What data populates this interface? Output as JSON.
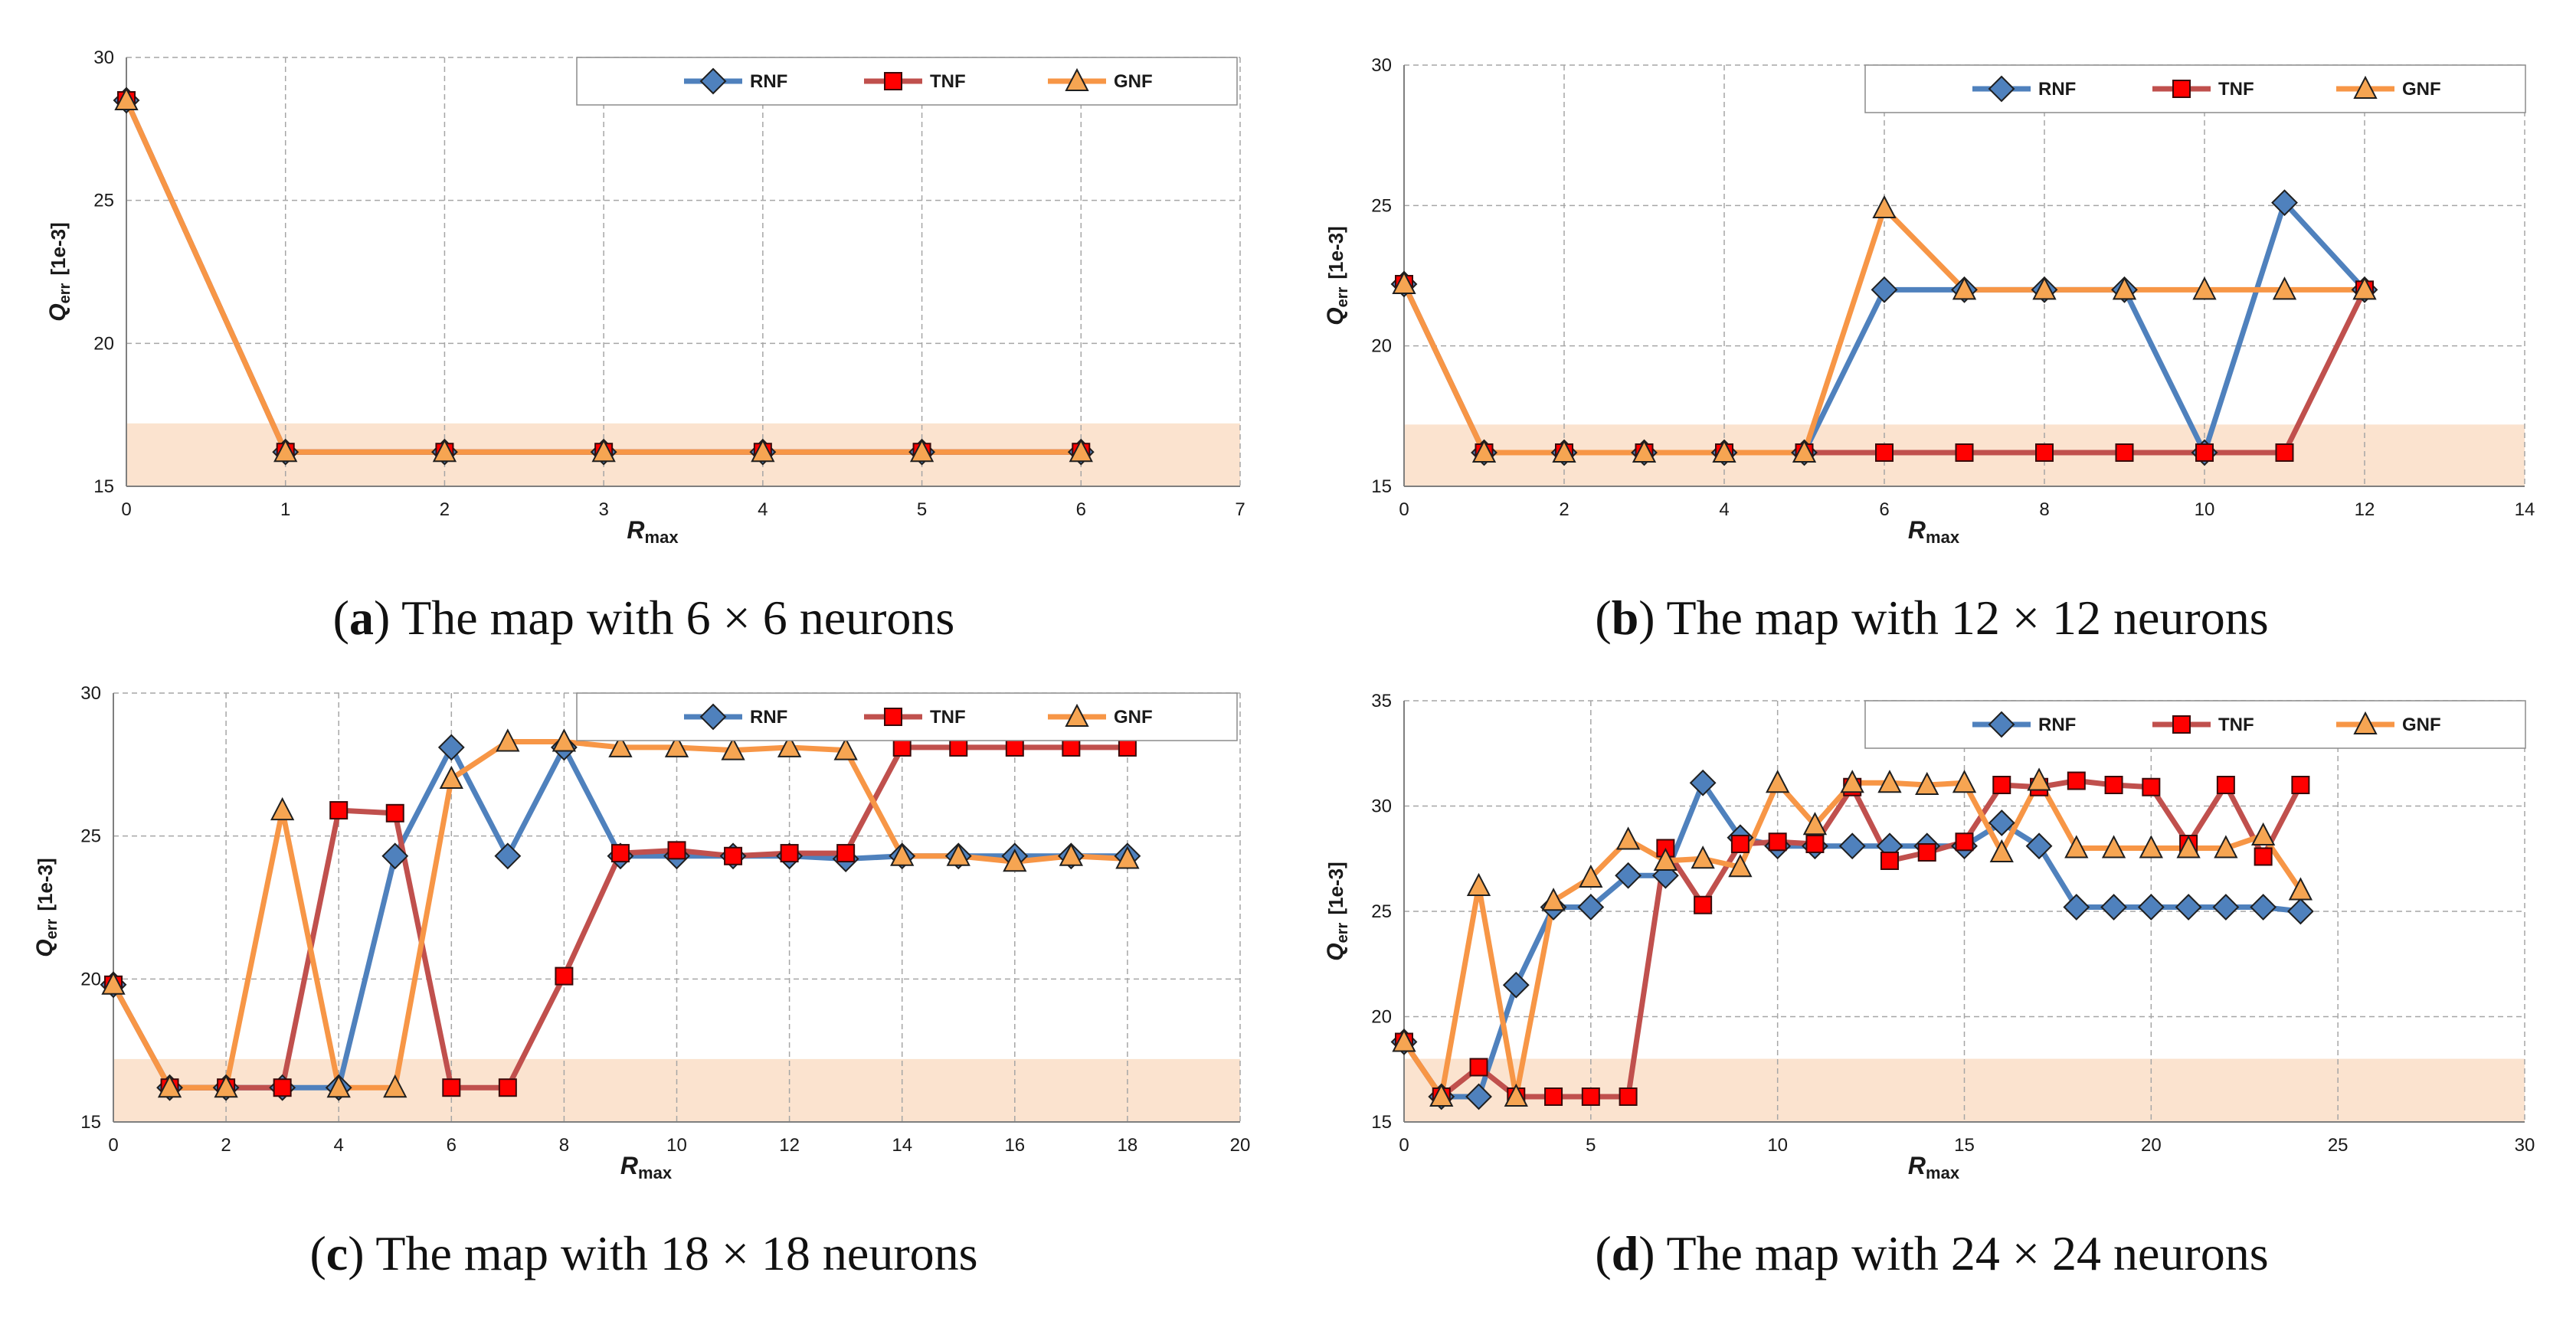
{
  "colors": {
    "RNF": "#4f81bd",
    "TNF": "#c0504d",
    "GNF": "#f79646",
    "RNF_marker": "#4f81bd",
    "TNF_marker": "#ff0000",
    "GNF_marker": "#f6a552",
    "band": "#fbe3cf",
    "grid": "#a6a6a6"
  },
  "chart_data": [
    {
      "type": "line",
      "panel": "a",
      "caption_label": "a",
      "caption_text": "The map with 6 × 6 neurons",
      "xlabel_main": "R",
      "xlabel_sub": "max",
      "ylabel_main": "Q",
      "ylabel_sub": "err",
      "ylabel_unit": "[1e-3]",
      "xlim": [
        0,
        7
      ],
      "ylim": [
        15,
        30
      ],
      "xticks": [
        0,
        1,
        2,
        3,
        4,
        5,
        6,
        7
      ],
      "yticks": [
        15,
        20,
        25,
        30
      ],
      "band": [
        15,
        17.2
      ],
      "legend": [
        "RNF",
        "TNF",
        "GNF"
      ],
      "series": [
        {
          "name": "RNF",
          "x": [
            0,
            1,
            2,
            3,
            4,
            5,
            6
          ],
          "values": [
            28.5,
            16.2,
            16.2,
            16.2,
            16.2,
            16.2,
            16.2
          ]
        },
        {
          "name": "TNF",
          "x": [
            0,
            1,
            2,
            3,
            4,
            5,
            6
          ],
          "values": [
            28.5,
            16.2,
            16.2,
            16.2,
            16.2,
            16.2,
            16.2
          ]
        },
        {
          "name": "GNF",
          "x": [
            0,
            1,
            2,
            3,
            4,
            5,
            6
          ],
          "values": [
            28.5,
            16.2,
            16.2,
            16.2,
            16.2,
            16.2,
            16.2
          ]
        }
      ]
    },
    {
      "type": "line",
      "panel": "b",
      "caption_label": "b",
      "caption_text": "The map with 12 × 12 neurons",
      "xlabel_main": "R",
      "xlabel_sub": "max",
      "ylabel_main": "Q",
      "ylabel_sub": "err",
      "ylabel_unit": "[1e-3]",
      "xlim": [
        0,
        14
      ],
      "ylim": [
        15,
        30
      ],
      "xticks": [
        0,
        2,
        4,
        6,
        8,
        10,
        12,
        14
      ],
      "yticks": [
        15,
        20,
        25,
        30
      ],
      "band": [
        15,
        17.2
      ],
      "legend": [
        "RNF",
        "TNF",
        "GNF"
      ],
      "series": [
        {
          "name": "RNF",
          "x": [
            0,
            1,
            2,
            3,
            4,
            5,
            6,
            7,
            8,
            9,
            10,
            11,
            12
          ],
          "values": [
            22.2,
            16.2,
            16.2,
            16.2,
            16.2,
            16.2,
            22.0,
            22.0,
            22.0,
            22.0,
            16.2,
            25.1,
            22.0
          ]
        },
        {
          "name": "TNF",
          "x": [
            0,
            1,
            2,
            3,
            4,
            5,
            6,
            7,
            8,
            9,
            10,
            11,
            12
          ],
          "values": [
            22.2,
            16.2,
            16.2,
            16.2,
            16.2,
            16.2,
            16.2,
            16.2,
            16.2,
            16.2,
            16.2,
            16.2,
            22.0
          ]
        },
        {
          "name": "GNF",
          "x": [
            0,
            1,
            2,
            3,
            4,
            5,
            6,
            7,
            8,
            9,
            10,
            11,
            12
          ],
          "values": [
            22.2,
            16.2,
            16.2,
            16.2,
            16.2,
            16.2,
            24.9,
            22.0,
            22.0,
            22.0,
            22.0,
            22.0,
            22.0
          ]
        }
      ]
    },
    {
      "type": "line",
      "panel": "c",
      "caption_label": "c",
      "caption_text": "The map with 18 × 18 neurons",
      "xlabel_main": "R",
      "xlabel_sub": "max",
      "ylabel_main": "Q",
      "ylabel_sub": "err",
      "ylabel_unit": "[1e-3]",
      "xlim": [
        0,
        20
      ],
      "ylim": [
        15,
        30
      ],
      "xticks": [
        0,
        2,
        4,
        6,
        8,
        10,
        12,
        14,
        16,
        18,
        20
      ],
      "yticks": [
        15,
        20,
        25,
        30
      ],
      "band": [
        15,
        17.2
      ],
      "legend": [
        "RNF",
        "TNF",
        "GNF"
      ],
      "series": [
        {
          "name": "RNF",
          "x": [
            0,
            1,
            2,
            3,
            4,
            5,
            6,
            7,
            8,
            9,
            10,
            11,
            12,
            13,
            14,
            15,
            16,
            17,
            18
          ],
          "values": [
            19.8,
            16.2,
            16.2,
            16.2,
            16.2,
            24.3,
            28.1,
            24.3,
            28.1,
            24.3,
            24.3,
            24.3,
            24.3,
            24.2,
            24.3,
            24.3,
            24.3,
            24.3,
            24.3
          ]
        },
        {
          "name": "TNF",
          "x": [
            0,
            1,
            2,
            3,
            4,
            5,
            6,
            7,
            8,
            9,
            10,
            11,
            12,
            13,
            14,
            15,
            16,
            17,
            18
          ],
          "values": [
            19.8,
            16.2,
            16.2,
            16.2,
            25.9,
            25.8,
            16.2,
            16.2,
            20.1,
            24.4,
            24.5,
            24.3,
            24.4,
            24.4,
            28.1,
            28.1,
            28.1,
            28.1,
            28.1
          ]
        },
        {
          "name": "GNF",
          "x": [
            0,
            1,
            2,
            3,
            4,
            5,
            6,
            7,
            8,
            9,
            10,
            11,
            12,
            13,
            14,
            15,
            16,
            17,
            18
          ],
          "values": [
            19.8,
            16.2,
            16.2,
            25.9,
            16.2,
            16.2,
            27.0,
            28.3,
            28.3,
            28.1,
            28.1,
            28.0,
            28.1,
            28.0,
            24.3,
            24.3,
            24.1,
            24.3,
            24.2
          ]
        }
      ]
    },
    {
      "type": "line",
      "panel": "d",
      "caption_label": "d",
      "caption_text": "The map with 24 × 24 neurons",
      "xlabel_main": "R",
      "xlabel_sub": "max",
      "ylabel_main": "Q",
      "ylabel_sub": "err",
      "ylabel_unit": "[1e-3]",
      "xlim": [
        0,
        30
      ],
      "ylim": [
        15,
        35
      ],
      "xticks": [
        0,
        5,
        10,
        15,
        20,
        25,
        30
      ],
      "yticks": [
        15,
        20,
        25,
        30,
        35
      ],
      "band": [
        15,
        18
      ],
      "legend": [
        "RNF",
        "TNF",
        "GNF"
      ],
      "series": [
        {
          "name": "RNF",
          "x": [
            0,
            1,
            2,
            3,
            4,
            5,
            6,
            7,
            8,
            9,
            10,
            11,
            12,
            13,
            14,
            15,
            16,
            17,
            18,
            19,
            20,
            21,
            22,
            23,
            24
          ],
          "values": [
            18.8,
            16.2,
            16.2,
            21.5,
            25.2,
            25.2,
            26.7,
            26.7,
            31.1,
            28.5,
            28.1,
            28.1,
            28.1,
            28.1,
            28.1,
            28.1,
            29.2,
            28.1,
            25.2,
            25.2,
            25.2,
            25.2,
            25.2,
            25.2,
            25.0
          ]
        },
        {
          "name": "TNF",
          "x": [
            0,
            1,
            2,
            3,
            4,
            5,
            6,
            7,
            8,
            9,
            10,
            11,
            12,
            13,
            14,
            15,
            16,
            17,
            18,
            19,
            20,
            21,
            22,
            23,
            24
          ],
          "values": [
            18.8,
            16.2,
            17.6,
            16.2,
            16.2,
            16.2,
            16.2,
            28.0,
            25.3,
            28.2,
            28.3,
            28.2,
            30.9,
            27.4,
            27.8,
            28.3,
            31.0,
            30.9,
            31.2,
            31.0,
            30.9,
            28.2,
            31.0,
            27.6,
            31.0
          ]
        },
        {
          "name": "GNF",
          "x": [
            0,
            1,
            2,
            3,
            4,
            5,
            6,
            7,
            8,
            9,
            10,
            11,
            12,
            13,
            14,
            15,
            16,
            17,
            18,
            19,
            20,
            21,
            22,
            23,
            24
          ],
          "values": [
            18.8,
            16.2,
            26.2,
            16.2,
            25.5,
            26.6,
            28.4,
            27.4,
            27.5,
            27.1,
            31.1,
            29.1,
            31.1,
            31.1,
            31.0,
            31.1,
            27.8,
            31.2,
            28.0,
            28.0,
            28.0,
            28.0,
            28.0,
            28.6,
            26.0
          ]
        }
      ]
    }
  ]
}
